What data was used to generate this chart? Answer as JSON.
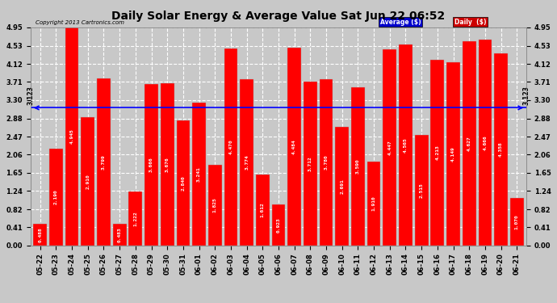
{
  "title": "Daily Solar Energy & Average Value Sat Jun 22 06:52",
  "copyright": "Copyright 2013 Cartronics.com",
  "categories": [
    "05-22",
    "05-23",
    "05-24",
    "05-25",
    "05-26",
    "05-27",
    "05-28",
    "05-29",
    "05-30",
    "05-31",
    "06-01",
    "06-02",
    "06-03",
    "06-04",
    "06-05",
    "06-06",
    "06-07",
    "06-08",
    "06-09",
    "06-10",
    "06-11",
    "06-12",
    "06-13",
    "06-14",
    "06-15",
    "06-16",
    "06-17",
    "06-18",
    "06-19",
    "06-20",
    "06-21"
  ],
  "values": [
    0.488,
    2.19,
    4.945,
    2.91,
    3.799,
    0.483,
    1.222,
    3.666,
    3.676,
    2.84,
    3.241,
    1.825,
    4.47,
    3.774,
    1.612,
    0.923,
    4.484,
    3.712,
    3.78,
    2.691,
    3.59,
    1.91,
    4.447,
    4.565,
    2.515,
    4.213,
    4.149,
    4.627,
    4.666,
    4.358,
    1.07
  ],
  "average": 3.123,
  "bar_color": "#FF0000",
  "average_line_color": "#0000FF",
  "background_color": "#C8C8C8",
  "plot_bg_color": "#C8C8C8",
  "grid_color": "#FFFFFF",
  "yticks": [
    0.0,
    0.41,
    0.82,
    1.24,
    1.65,
    2.06,
    2.47,
    2.88,
    3.3,
    3.71,
    4.12,
    4.53,
    4.95
  ],
  "ylim": [
    0,
    4.95
  ],
  "legend_avg_bg": "#0000CC",
  "legend_daily_bg": "#FF0000",
  "avg_label": "Average ($)",
  "daily_label": "Daily  ($)",
  "title_fontsize": 10,
  "tick_fontsize": 6,
  "bar_label_fontsize": 4.5,
  "avg_annotation": "3.123"
}
